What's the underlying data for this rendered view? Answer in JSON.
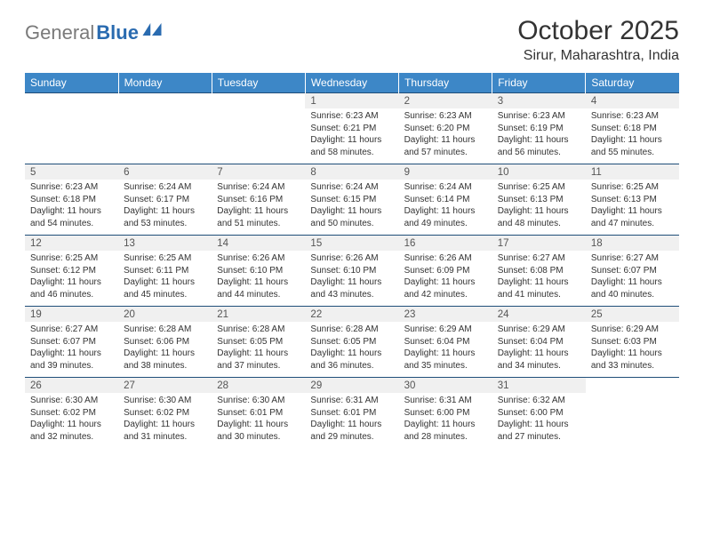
{
  "brand": {
    "part1": "General",
    "part2": "Blue"
  },
  "title": "October 2025",
  "location": "Sirur, Maharashtra, India",
  "colors": {
    "header_bg": "#3d87c7",
    "header_text": "#ffffff",
    "daynum_bg": "#f0f0f0",
    "grid_line": "#1f4e79",
    "logo_gray": "#7a7a7a",
    "logo_blue": "#2a6bb0"
  },
  "day_headers": [
    "Sunday",
    "Monday",
    "Tuesday",
    "Wednesday",
    "Thursday",
    "Friday",
    "Saturday"
  ],
  "weeks": [
    [
      null,
      null,
      null,
      {
        "n": "1",
        "sr": "6:23 AM",
        "ss": "6:21 PM",
        "dl": "11 hours and 58 minutes."
      },
      {
        "n": "2",
        "sr": "6:23 AM",
        "ss": "6:20 PM",
        "dl": "11 hours and 57 minutes."
      },
      {
        "n": "3",
        "sr": "6:23 AM",
        "ss": "6:19 PM",
        "dl": "11 hours and 56 minutes."
      },
      {
        "n": "4",
        "sr": "6:23 AM",
        "ss": "6:18 PM",
        "dl": "11 hours and 55 minutes."
      }
    ],
    [
      {
        "n": "5",
        "sr": "6:23 AM",
        "ss": "6:18 PM",
        "dl": "11 hours and 54 minutes."
      },
      {
        "n": "6",
        "sr": "6:24 AM",
        "ss": "6:17 PM",
        "dl": "11 hours and 53 minutes."
      },
      {
        "n": "7",
        "sr": "6:24 AM",
        "ss": "6:16 PM",
        "dl": "11 hours and 51 minutes."
      },
      {
        "n": "8",
        "sr": "6:24 AM",
        "ss": "6:15 PM",
        "dl": "11 hours and 50 minutes."
      },
      {
        "n": "9",
        "sr": "6:24 AM",
        "ss": "6:14 PM",
        "dl": "11 hours and 49 minutes."
      },
      {
        "n": "10",
        "sr": "6:25 AM",
        "ss": "6:13 PM",
        "dl": "11 hours and 48 minutes."
      },
      {
        "n": "11",
        "sr": "6:25 AM",
        "ss": "6:13 PM",
        "dl": "11 hours and 47 minutes."
      }
    ],
    [
      {
        "n": "12",
        "sr": "6:25 AM",
        "ss": "6:12 PM",
        "dl": "11 hours and 46 minutes."
      },
      {
        "n": "13",
        "sr": "6:25 AM",
        "ss": "6:11 PM",
        "dl": "11 hours and 45 minutes."
      },
      {
        "n": "14",
        "sr": "6:26 AM",
        "ss": "6:10 PM",
        "dl": "11 hours and 44 minutes."
      },
      {
        "n": "15",
        "sr": "6:26 AM",
        "ss": "6:10 PM",
        "dl": "11 hours and 43 minutes."
      },
      {
        "n": "16",
        "sr": "6:26 AM",
        "ss": "6:09 PM",
        "dl": "11 hours and 42 minutes."
      },
      {
        "n": "17",
        "sr": "6:27 AM",
        "ss": "6:08 PM",
        "dl": "11 hours and 41 minutes."
      },
      {
        "n": "18",
        "sr": "6:27 AM",
        "ss": "6:07 PM",
        "dl": "11 hours and 40 minutes."
      }
    ],
    [
      {
        "n": "19",
        "sr": "6:27 AM",
        "ss": "6:07 PM",
        "dl": "11 hours and 39 minutes."
      },
      {
        "n": "20",
        "sr": "6:28 AM",
        "ss": "6:06 PM",
        "dl": "11 hours and 38 minutes."
      },
      {
        "n": "21",
        "sr": "6:28 AM",
        "ss": "6:05 PM",
        "dl": "11 hours and 37 minutes."
      },
      {
        "n": "22",
        "sr": "6:28 AM",
        "ss": "6:05 PM",
        "dl": "11 hours and 36 minutes."
      },
      {
        "n": "23",
        "sr": "6:29 AM",
        "ss": "6:04 PM",
        "dl": "11 hours and 35 minutes."
      },
      {
        "n": "24",
        "sr": "6:29 AM",
        "ss": "6:04 PM",
        "dl": "11 hours and 34 minutes."
      },
      {
        "n": "25",
        "sr": "6:29 AM",
        "ss": "6:03 PM",
        "dl": "11 hours and 33 minutes."
      }
    ],
    [
      {
        "n": "26",
        "sr": "6:30 AM",
        "ss": "6:02 PM",
        "dl": "11 hours and 32 minutes."
      },
      {
        "n": "27",
        "sr": "6:30 AM",
        "ss": "6:02 PM",
        "dl": "11 hours and 31 minutes."
      },
      {
        "n": "28",
        "sr": "6:30 AM",
        "ss": "6:01 PM",
        "dl": "11 hours and 30 minutes."
      },
      {
        "n": "29",
        "sr": "6:31 AM",
        "ss": "6:01 PM",
        "dl": "11 hours and 29 minutes."
      },
      {
        "n": "30",
        "sr": "6:31 AM",
        "ss": "6:00 PM",
        "dl": "11 hours and 28 minutes."
      },
      {
        "n": "31",
        "sr": "6:32 AM",
        "ss": "6:00 PM",
        "dl": "11 hours and 27 minutes."
      },
      null
    ]
  ],
  "labels": {
    "sunrise": "Sunrise:",
    "sunset": "Sunset:",
    "daylight": "Daylight:"
  }
}
